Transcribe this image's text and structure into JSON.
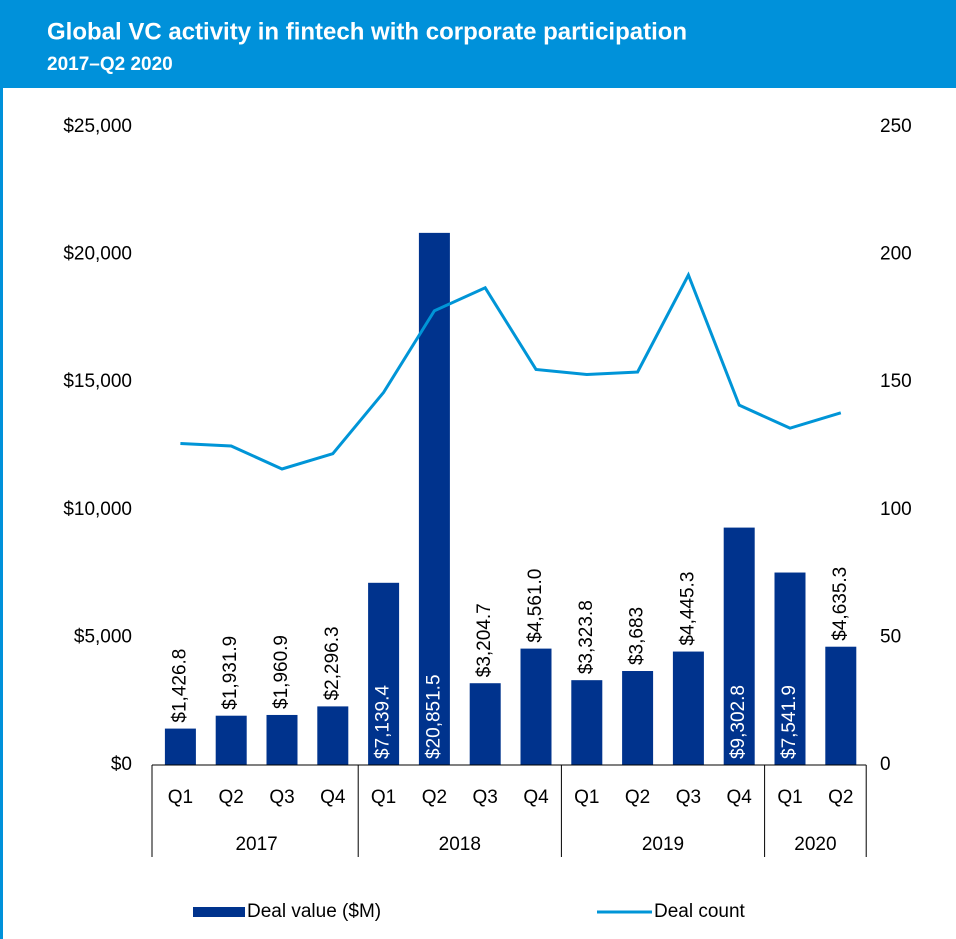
{
  "chart_data": {
    "type": "bar-line",
    "title": "Global VC activity in fintech with corporate participation",
    "subtitle": "2017–Q2 2020",
    "categories": [
      "Q1",
      "Q2",
      "Q3",
      "Q4",
      "Q1",
      "Q2",
      "Q3",
      "Q4",
      "Q1",
      "Q2",
      "Q3",
      "Q4",
      "Q1",
      "Q2"
    ],
    "groups": [
      {
        "label": "2017",
        "size": 4
      },
      {
        "label": "2018",
        "size": 4
      },
      {
        "label": "2019",
        "size": 4
      },
      {
        "label": "2020",
        "size": 2
      }
    ],
    "series": [
      {
        "name": "Deal value ($M)",
        "type": "bar",
        "color": "#00338d",
        "axis": "y",
        "values": [
          1426.8,
          1931.9,
          1960.9,
          2296.3,
          7139.4,
          20851.5,
          3204.7,
          4561.0,
          3323.8,
          3683,
          4445.3,
          9302.8,
          7541.9,
          4635.3
        ],
        "value_labels": [
          "$1,426.8",
          "$1,931.9",
          "$1,960.9",
          "$2,296.3",
          "$7,139.4",
          "$20,851.5",
          "$3,204.7",
          "$4,561.0",
          "$3,323.8",
          "$3,683",
          "$4,445.3",
          "$9,302.8",
          "$7,541.9",
          "$4,635.3"
        ]
      },
      {
        "name": "Deal count",
        "type": "line",
        "color": "#0095d7",
        "axis": "y2",
        "values": [
          126,
          125,
          116,
          122,
          146,
          178,
          187,
          155,
          153,
          154,
          192,
          141,
          132,
          138
        ]
      }
    ],
    "ylim": [
      0,
      25000
    ],
    "yticks": [
      {
        "value": 0,
        "label": "$0"
      },
      {
        "value": 5000,
        "label": "$5,000"
      },
      {
        "value": 10000,
        "label": "$10,000"
      },
      {
        "value": 15000,
        "label": "$15,000"
      },
      {
        "value": 20000,
        "label": "$20,000"
      },
      {
        "value": 25000,
        "label": "$25,000"
      }
    ],
    "y2lim": [
      0,
      250
    ],
    "y2ticks": [
      0,
      50,
      100,
      150,
      200,
      250
    ],
    "legend": "bottom"
  }
}
